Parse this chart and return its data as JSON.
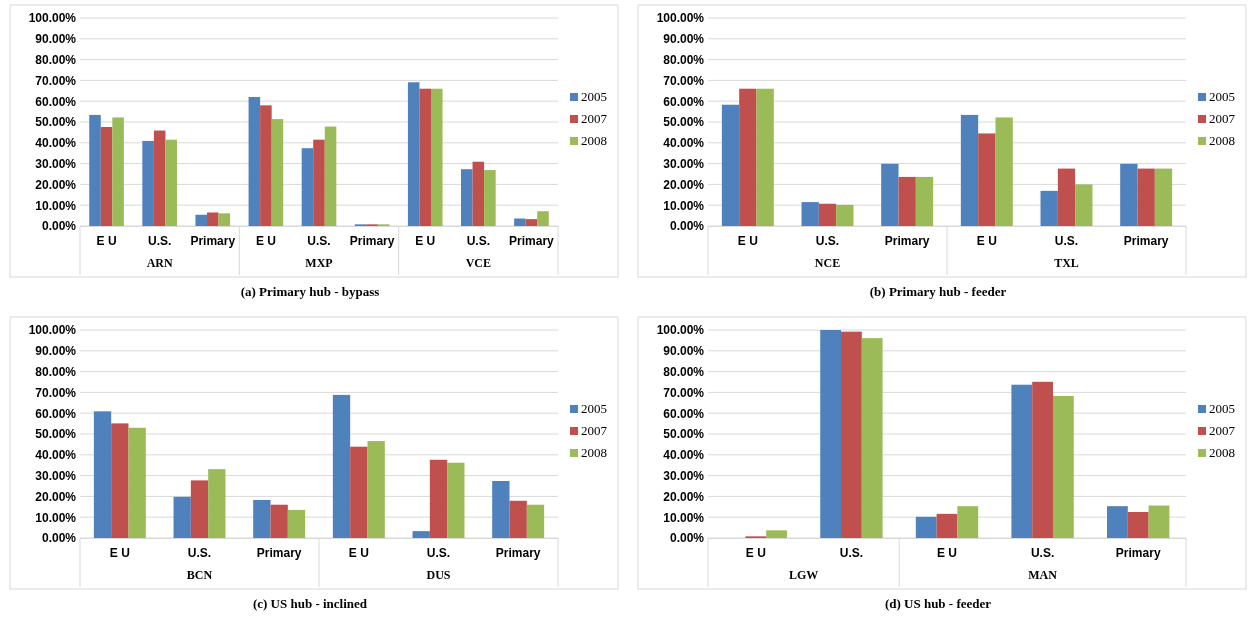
{
  "chart_data": [
    {
      "type": "bar",
      "title": "(a) Primary hub - bypass",
      "categories": [
        "E U",
        "U.S.",
        "Primary",
        "E U",
        "U.S.",
        "Primary",
        "E U",
        "U.S.",
        "Primary"
      ],
      "annotations": [
        "ARN",
        "MXP",
        "VCE"
      ],
      "series": [
        {
          "name": "2005",
          "color": "#4f81bd",
          "values": [
            53.4,
            40.9,
            5.4,
            62,
            37.4,
            0.8,
            69.1,
            27.3,
            3.6
          ]
        },
        {
          "name": "2007",
          "color": "#c0504d",
          "values": [
            47.6,
            45.9,
            6.5,
            58,
            41.5,
            0.8,
            66,
            30.9,
            3.3
          ]
        },
        {
          "name": "2008",
          "color": "#9bbb59",
          "values": [
            52.2,
            41.5,
            6.1,
            51.4,
            47.8,
            0.8,
            66,
            26.9,
            7.1
          ]
        }
      ],
      "ylim": [
        0,
        100
      ],
      "yticks": [
        {
          "value": 0,
          "label": "0.00%"
        },
        {
          "value": 10,
          "label": "10.00%"
        },
        {
          "value": 20,
          "label": "20.00%"
        },
        {
          "value": 30,
          "label": "30.00%"
        },
        {
          "value": 40,
          "label": "40.00%"
        },
        {
          "value": 50,
          "label": "50.00%"
        },
        {
          "value": 60,
          "label": "60.00%"
        },
        {
          "value": 70,
          "label": "70.00%"
        },
        {
          "value": 80,
          "label": "80.00%"
        },
        {
          "value": 90,
          "label": "90.00%"
        },
        {
          "value": 100,
          "label": "100.00%"
        }
      ],
      "grid": "y",
      "legend": "right"
    },
    {
      "type": "bar",
      "title": "(b) Primary hub - feeder",
      "categories": [
        "E U",
        "U.S.",
        "Primary",
        "E U",
        "U.S.",
        "Primary"
      ],
      "annotations": [
        "NCE",
        "TXL"
      ],
      "series": [
        {
          "name": "2005",
          "color": "#4f81bd",
          "values": [
            58.3,
            11.5,
            29.9,
            53.4,
            16.9,
            29.9
          ]
        },
        {
          "name": "2007",
          "color": "#c0504d",
          "values": [
            66,
            10.7,
            23.6,
            44.5,
            27.6,
            27.6
          ]
        },
        {
          "name": "2008",
          "color": "#9bbb59",
          "values": [
            66,
            10.2,
            23.6,
            52.2,
            20,
            27.6
          ]
        }
      ],
      "ylim": [
        0,
        100
      ],
      "yticks": [
        {
          "value": 0,
          "label": "0.00%"
        },
        {
          "value": 10,
          "label": "10.00%"
        },
        {
          "value": 20,
          "label": "20.00%"
        },
        {
          "value": 30,
          "label": "30.00%"
        },
        {
          "value": 40,
          "label": "40.00%"
        },
        {
          "value": 50,
          "label": "50.00%"
        },
        {
          "value": 60,
          "label": "60.00%"
        },
        {
          "value": 70,
          "label": "70.00%"
        },
        {
          "value": 80,
          "label": "80.00%"
        },
        {
          "value": 90,
          "label": "90.00%"
        },
        {
          "value": 100,
          "label": "100.00%"
        }
      ],
      "grid": "y",
      "legend": "right"
    },
    {
      "type": "bar",
      "title": "(c) US hub - inclined",
      "categories": [
        "E U",
        "U.S.",
        "Primary",
        "E U",
        "U.S.",
        "Primary"
      ],
      "annotations": [
        "BCN",
        "DUS"
      ],
      "series": [
        {
          "name": "2005",
          "color": "#4f81bd",
          "values": [
            60.9,
            19.8,
            18.3,
            68.8,
            3.3,
            27.4
          ]
        },
        {
          "name": "2007",
          "color": "#c0504d",
          "values": [
            55.1,
            27.7,
            16,
            43.9,
            37.6,
            17.9
          ]
        },
        {
          "name": "2008",
          "color": "#9bbb59",
          "values": [
            53,
            33.1,
            13.5,
            46.6,
            36.2,
            16
          ]
        }
      ],
      "ylim": [
        0,
        100
      ],
      "yticks": [
        {
          "value": 0,
          "label": "0.00%"
        },
        {
          "value": 10,
          "label": "10.00%"
        },
        {
          "value": 20,
          "label": "20.00%"
        },
        {
          "value": 30,
          "label": "30.00%"
        },
        {
          "value": 40,
          "label": "40.00%"
        },
        {
          "value": 50,
          "label": "50.00%"
        },
        {
          "value": 60,
          "label": "60.00%"
        },
        {
          "value": 70,
          "label": "70.00%"
        },
        {
          "value": 80,
          "label": "80.00%"
        },
        {
          "value": 90,
          "label": "90.00%"
        },
        {
          "value": 100,
          "label": "100.00%"
        }
      ],
      "grid": "y",
      "legend": "right"
    },
    {
      "type": "bar",
      "title": "(d) US hub - feeder",
      "categories": [
        "E U",
        "U.S.",
        "E U",
        "U.S.",
        "Primary"
      ],
      "annotations": [
        "LGW",
        "MAN"
      ],
      "series": [
        {
          "name": "2005",
          "color": "#4f81bd",
          "values": [
            0,
            100,
            10.2,
            73.7,
            15.3
          ]
        },
        {
          "name": "2007",
          "color": "#c0504d",
          "values": [
            0.8,
            99.2,
            11.6,
            75.1,
            12.5
          ]
        },
        {
          "name": "2008",
          "color": "#9bbb59",
          "values": [
            3.7,
            96.1,
            15.3,
            68.3,
            15.6
          ]
        }
      ],
      "ylim": [
        0,
        100
      ],
      "yticks": [
        {
          "value": 0,
          "label": "0.00%"
        },
        {
          "value": 10,
          "label": "10.00%"
        },
        {
          "value": 20,
          "label": "20.00%"
        },
        {
          "value": 30,
          "label": "30.00%"
        },
        {
          "value": 40,
          "label": "40.00%"
        },
        {
          "value": 50,
          "label": "50.00%"
        },
        {
          "value": 60,
          "label": "60.00%"
        },
        {
          "value": 70,
          "label": "70.00%"
        },
        {
          "value": 80,
          "label": "80.00%"
        },
        {
          "value": 90,
          "label": "90.00%"
        },
        {
          "value": 100,
          "label": "100.00%"
        }
      ],
      "grid": "y",
      "legend": "right"
    }
  ]
}
